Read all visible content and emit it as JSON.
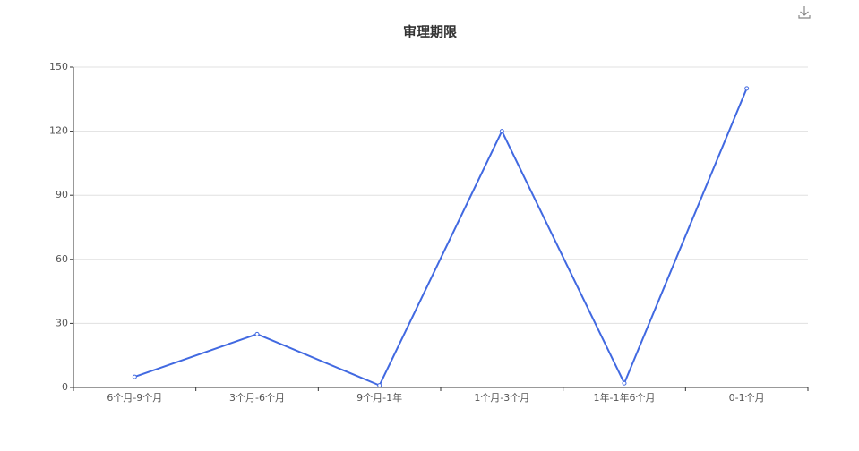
{
  "chart_data": {
    "type": "line",
    "title": "审理期限",
    "categories": [
      "6个月-9个月",
      "3个月-6个月",
      "9个月-1年",
      "1个月-3个月",
      "1年-1年6个月",
      "0-1个月"
    ],
    "values": [
      5,
      25,
      1,
      120,
      2,
      140
    ],
    "color": "#4169e1",
    "ylim": [
      0,
      150
    ],
    "yticks": [
      0,
      30,
      60,
      90,
      120,
      150
    ],
    "grid": true
  }
}
